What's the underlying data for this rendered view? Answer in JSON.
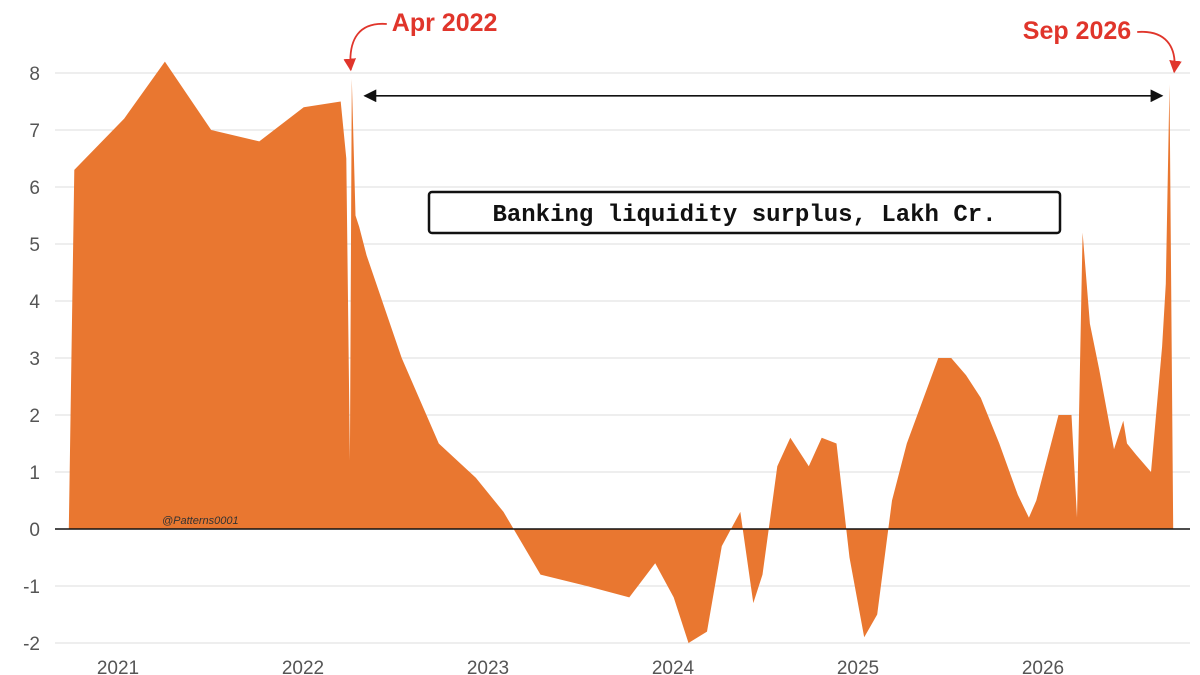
{
  "chart_data": {
    "type": "area",
    "title": "Banking liquidity surplus, Lakh Cr.",
    "xlabel": "",
    "ylabel": "",
    "ylim": [
      -2,
      8.3
    ],
    "xlim": [
      2020.75,
      2026.95
    ],
    "yticks": [
      -2,
      -1,
      0,
      1,
      2,
      3,
      4,
      5,
      6,
      7,
      8
    ],
    "xticks": [
      2021,
      2022,
      2023,
      2024,
      2025,
      2026
    ],
    "grid": true,
    "fill_color": "#e97730",
    "series": [
      {
        "x": [
          2020.75,
          2020.78,
          2021.05,
          2021.27,
          2021.52,
          2021.78,
          2022.02,
          2022.22,
          2022.25,
          2022.27,
          2022.28,
          2022.3,
          2022.32,
          2022.36,
          2022.55,
          2022.75,
          2022.95,
          2023.1,
          2023.3,
          2023.55,
          2023.78,
          2023.92,
          2024.02,
          2024.1,
          2024.2,
          2024.28,
          2024.33,
          2024.38,
          2024.45,
          2024.5,
          2024.58,
          2024.65,
          2024.75,
          2024.82,
          2024.9,
          2024.97,
          2025.05,
          2025.12,
          2025.2,
          2025.28,
          2025.45,
          2025.52,
          2025.6,
          2025.68,
          2025.78,
          2025.88,
          2025.94,
          2025.98,
          2026.02,
          2026.1,
          2026.17,
          2026.2,
          2026.23,
          2026.27,
          2026.32,
          2026.4,
          2026.45,
          2026.47,
          2026.52,
          2026.6,
          2026.66,
          2026.68,
          2026.7,
          2026.72
        ],
        "y": [
          0,
          6.3,
          7.2,
          8.2,
          7.0,
          6.8,
          7.4,
          7.5,
          6.5,
          1.2,
          7.9,
          5.5,
          5.3,
          4.8,
          3.0,
          1.5,
          0.9,
          0.3,
          -0.8,
          -1.0,
          -1.2,
          -0.6,
          -1.2,
          -2.0,
          -1.8,
          -0.3,
          0.0,
          0.3,
          -1.3,
          -0.8,
          1.1,
          1.6,
          1.1,
          1.6,
          1.5,
          -0.5,
          -1.9,
          -1.5,
          0.5,
          1.5,
          3.0,
          3.0,
          2.7,
          2.3,
          1.5,
          0.6,
          0.2,
          0.5,
          1.0,
          2.0,
          2.0,
          0.2,
          5.2,
          3.6,
          2.8,
          1.4,
          1.9,
          1.5,
          1.3,
          1.0,
          3.2,
          4.3,
          7.8,
          0
        ]
      }
    ],
    "annotations": {
      "callout_left": {
        "text": "Apr 2022",
        "x": 2022.28
      },
      "callout_right": {
        "text": "Sep 2026",
        "x": 2026.72
      },
      "span_arrow": {
        "from": 2022.35,
        "to": 2026.66,
        "y": 7.6
      },
      "watermark": "@Patterns0001"
    }
  }
}
